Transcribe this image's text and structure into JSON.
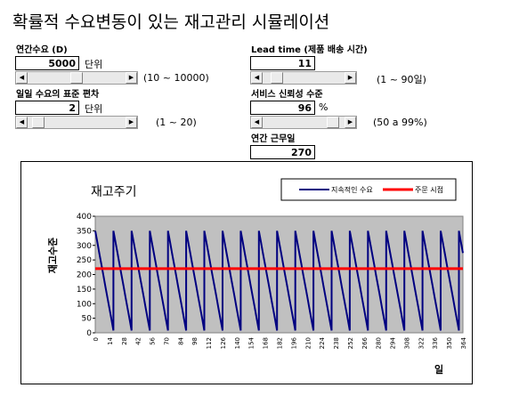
{
  "title": "확률적 수요변동이 있는 재고관리 시뮬레이션",
  "annual_demand": {
    "label": "연간수요 (D)",
    "value": "5000",
    "unit": "단위",
    "range": "(10 ~ 10000)",
    "level": 0.5
  },
  "daily_sd": {
    "label": "일일 수요의 표준 편차",
    "value": "2",
    "unit": "단위",
    "range": "(1 ~ 20)",
    "level": 0.05
  },
  "lead_time": {
    "label": "Lead time (제품 배송 시간)",
    "value": "11",
    "range": "(1 ~ 90일)",
    "level": 0.11
  },
  "service_level": {
    "label": "서비스 신뢰성 수준",
    "value": "96",
    "unit": "%",
    "range": "(50 a 99%)",
    "level": 0.92
  },
  "work_days": {
    "label": "연간 근무일",
    "value": "270"
  },
  "chart_data": {
    "type": "line",
    "title": "재고주기",
    "ylabel": "재고수준",
    "xlabel": "일",
    "ylim": [
      0,
      400
    ],
    "yticks": [
      0,
      50,
      100,
      150,
      200,
      250,
      300,
      350,
      400
    ],
    "xlim": [
      0,
      364
    ],
    "xticks": [
      0,
      14,
      28,
      42,
      56,
      70,
      84,
      98,
      112,
      126,
      140,
      154,
      168,
      182,
      196,
      210,
      224,
      238,
      252,
      266,
      280,
      294,
      308,
      322,
      336,
      350,
      364
    ],
    "grid": false,
    "legend_position": "top-right",
    "background": "#c0c0c0",
    "series": [
      {
        "name": "지속적인 수요",
        "color": "#000080",
        "x": [
          0,
          2,
          4,
          6,
          8,
          10,
          12,
          14,
          16,
          18,
          18,
          20,
          22,
          24,
          26,
          28,
          30,
          32,
          34,
          36,
          36,
          38,
          40,
          42,
          44,
          46,
          48,
          50,
          52,
          54,
          54,
          56,
          58,
          60,
          62,
          64,
          66,
          68,
          70,
          72,
          72,
          74,
          76,
          78,
          80,
          82,
          84,
          86,
          88,
          90,
          90,
          92,
          94,
          96,
          98,
          100,
          102,
          104,
          106,
          108,
          108,
          110,
          112,
          114,
          116,
          118,
          120,
          122,
          124,
          126,
          126,
          128,
          130,
          132,
          134,
          136,
          138,
          140,
          142,
          144,
          144,
          146,
          148,
          150,
          152,
          154,
          156,
          158,
          160,
          162,
          162,
          164,
          166,
          168,
          170,
          172,
          174,
          176,
          178,
          180,
          180,
          182,
          184,
          186,
          188,
          190,
          192,
          194,
          196,
          198,
          198,
          200,
          202,
          204,
          206,
          208,
          210,
          212,
          214,
          216,
          216,
          218,
          220,
          222,
          224,
          226,
          228,
          230,
          232,
          234,
          234,
          236,
          238,
          240,
          242,
          244,
          246,
          248,
          250,
          252,
          252,
          254,
          256,
          258,
          260,
          262,
          264,
          266,
          268,
          270,
          270,
          272,
          274,
          276,
          278,
          280,
          282,
          284,
          286,
          288,
          288,
          290,
          292,
          294,
          296,
          298,
          300,
          302,
          304,
          306,
          306,
          308,
          310,
          312,
          314,
          316,
          318,
          320,
          322,
          324,
          324,
          326,
          328,
          330,
          332,
          334,
          336,
          338,
          340,
          342,
          342,
          344,
          346,
          348,
          350,
          352,
          354,
          356,
          358,
          360,
          360,
          362,
          364
        ],
        "y": [
          350,
          312,
          274,
          236,
          198,
          160,
          122,
          84,
          46,
          8,
          350,
          312,
          274,
          236,
          198,
          160,
          122,
          84,
          46,
          8,
          350,
          312,
          274,
          236,
          198,
          160,
          122,
          84,
          46,
          8,
          350,
          312,
          274,
          236,
          198,
          160,
          122,
          84,
          46,
          8,
          350,
          312,
          274,
          236,
          198,
          160,
          122,
          84,
          46,
          8,
          350,
          312,
          274,
          236,
          198,
          160,
          122,
          84,
          46,
          8,
          350,
          312,
          274,
          236,
          198,
          160,
          122,
          84,
          46,
          8,
          350,
          312,
          274,
          236,
          198,
          160,
          122,
          84,
          46,
          8,
          350,
          312,
          274,
          236,
          198,
          160,
          122,
          84,
          46,
          8,
          350,
          312,
          274,
          236,
          198,
          160,
          122,
          84,
          46,
          8,
          350,
          312,
          274,
          236,
          198,
          160,
          122,
          84,
          46,
          8,
          350,
          312,
          274,
          236,
          198,
          160,
          122,
          84,
          46,
          8,
          350,
          312,
          274,
          236,
          198,
          160,
          122,
          84,
          46,
          8,
          350,
          312,
          274,
          236,
          198,
          160,
          122,
          84,
          46,
          8,
          350,
          312,
          274,
          236,
          198,
          160,
          122,
          84,
          46,
          8,
          350,
          312,
          274,
          236,
          198,
          160,
          122,
          84,
          46,
          8,
          350,
          312,
          274,
          236,
          198,
          160,
          122,
          84,
          46,
          8,
          350,
          312,
          274,
          236,
          198,
          160,
          122,
          84,
          46,
          8,
          350,
          312,
          274,
          236,
          198,
          160,
          122,
          84,
          46,
          8,
          350,
          312,
          274,
          236,
          198,
          160,
          122,
          84,
          46,
          8,
          350,
          312,
          274
        ]
      },
      {
        "name": "주문 시점",
        "color": "#ff0000",
        "x": [
          0,
          364
        ],
        "y": [
          220,
          220
        ]
      }
    ]
  }
}
